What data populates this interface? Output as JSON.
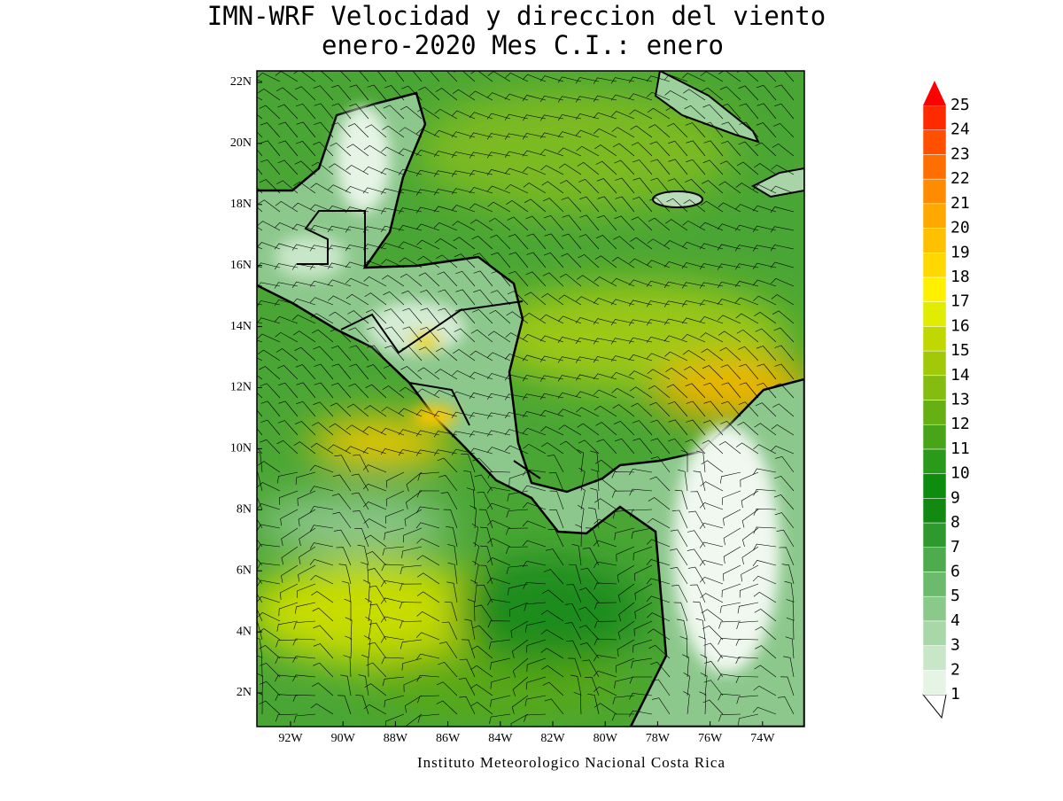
{
  "title": [
    "IMN-WRF Velocidad y direccion del viento",
    "enero-2020 Mes C.I.: enero"
  ],
  "lat_ticks": [
    "22N",
    "20N",
    "18N",
    "16N",
    "14N",
    "12N",
    "10N",
    "8N",
    "6N",
    "4N",
    "2N"
  ],
  "lon_ticks": [
    "92W",
    "90W",
    "88W",
    "86W",
    "84W",
    "82W",
    "80W",
    "78W",
    "76W",
    "74W"
  ],
  "colorbar": {
    "levels": [
      1,
      2,
      3,
      4,
      5,
      6,
      7,
      8,
      9,
      10,
      11,
      12,
      13,
      14,
      15,
      16,
      17,
      18,
      19,
      20,
      21,
      22,
      23,
      24,
      25
    ],
    "colors": [
      "#ffffff",
      "#e6f4e6",
      "#c8e6c8",
      "#a8d8a8",
      "#8ac98a",
      "#6cba6c",
      "#4eab4e",
      "#2e9a2e",
      "#128a12",
      "#0e8c0e",
      "#2a9a1a",
      "#48a418",
      "#66b014",
      "#84bc10",
      "#a2c80a",
      "#c0d800",
      "#e0ec00",
      "#fff000",
      "#ffd800",
      "#ffc000",
      "#ffa800",
      "#ff8c00",
      "#ff6e00",
      "#ff5000",
      "#ff2a00",
      "#ff0000"
    ]
  },
  "footer": "Instituto Meteorologico Nacional Costa Rica"
}
